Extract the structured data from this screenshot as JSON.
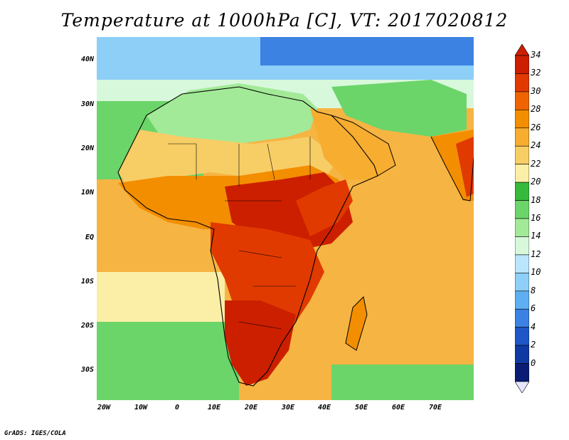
{
  "title": "Temperature at 1000hPa [C], VT: 2017020812",
  "credit": "GrADS: IGES/COLA",
  "lat_labels": [
    "40N",
    "30N",
    "20N",
    "10N",
    "EQ",
    "10S",
    "20S",
    "30S"
  ],
  "lon_labels": [
    "20W",
    "10W",
    "0",
    "10E",
    "20E",
    "30E",
    "40E",
    "50E",
    "60E",
    "70E"
  ],
  "colorbar": {
    "labels": [
      "34",
      "32",
      "30",
      "28",
      "26",
      "24",
      "22",
      "20",
      "18",
      "16",
      "14",
      "12",
      "10",
      "8",
      "6",
      "4",
      "2",
      "0"
    ],
    "colors": [
      "#cc1f00",
      "#e03a00",
      "#ef6400",
      "#f38e00",
      "#f6ad30",
      "#f7cd66",
      "#fbeea6",
      "#37b93c",
      "#6bd56a",
      "#a2ea97",
      "#d8f8dc",
      "#b9e6fb",
      "#8dcff7",
      "#5eaef2",
      "#3c82e3",
      "#1e56c8",
      "#103aa3",
      "#0a1c74"
    ]
  },
  "map": {
    "extent": {
      "lon_min": -22,
      "lon_max": 80,
      "lat_min": -37,
      "lat_max": 45
    },
    "colors": {
      "ocean_warm": "#f6b443",
      "ocean_mid": "#f7cd66",
      "ocean_pale": "#fbeea6",
      "south_green": "#6bd56a",
      "south_light": "#a2ea97",
      "north_blue": "#8dcff7",
      "north_deep": "#3c82e3",
      "land_hot": "#e03a00",
      "land_very_hot": "#cc1f00",
      "land_warm": "#f38e00",
      "sahara": "#f6ad30",
      "sahel_green": "#6bd56a",
      "med_light": "#d8f8dc",
      "border": "#000000"
    }
  }
}
